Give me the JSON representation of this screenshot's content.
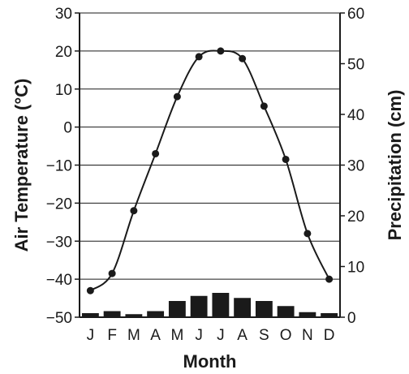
{
  "chart_data": {
    "type": "line",
    "title": "",
    "xlabel": "Month",
    "ylabel": "Air Temperature (°C)",
    "y2label": "Precipitation (cm)",
    "categories": [
      "J",
      "F",
      "M",
      "A",
      "M",
      "J",
      "J",
      "A",
      "S",
      "O",
      "N",
      "D"
    ],
    "series": [
      {
        "type": "line",
        "axis": "left",
        "values": [
          -43,
          -38.5,
          -22,
          -7,
          8,
          18.5,
          20,
          18,
          5.5,
          -8.5,
          -28,
          -40
        ]
      },
      {
        "type": "bar",
        "axis": "right",
        "values": [
          0.8,
          1.2,
          0.6,
          1.2,
          3.2,
          4.2,
          4.8,
          3.8,
          3.2,
          2.2,
          1.0,
          0.8
        ]
      }
    ],
    "ylim": [
      -50,
      30
    ],
    "y2lim": [
      0,
      60
    ],
    "yticks": [
      "30",
      "20",
      "10",
      "0",
      "−10",
      "−20",
      "−30",
      "−40",
      "−50"
    ],
    "y2ticks": [
      "60",
      "50",
      "40",
      "30",
      "20",
      "10",
      "0"
    ],
    "grid": true,
    "colors": {
      "line": "#1a1a1a",
      "bars": "#1a1a1a",
      "grid": "#1a1a1a"
    }
  }
}
